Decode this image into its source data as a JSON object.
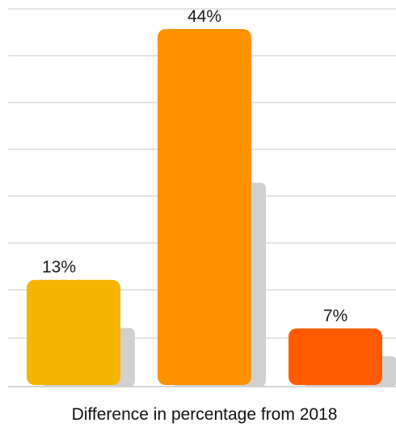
{
  "chart_data": {
    "type": "bar",
    "categories": [
      "",
      "",
      ""
    ],
    "values": [
      13,
      44,
      7
    ],
    "value_labels": [
      "13%",
      "44%",
      "7%"
    ],
    "unit": "%",
    "xlabel": "Difference in percentage from 2018",
    "ylabel": "",
    "ylim": [
      0,
      48
    ],
    "grid": true,
    "colors": [
      "#F5B400",
      "#FF9200",
      "#FF5A00"
    ],
    "shadow_color": "#D0D0D0",
    "gridline_color": "#C8C8C8"
  }
}
